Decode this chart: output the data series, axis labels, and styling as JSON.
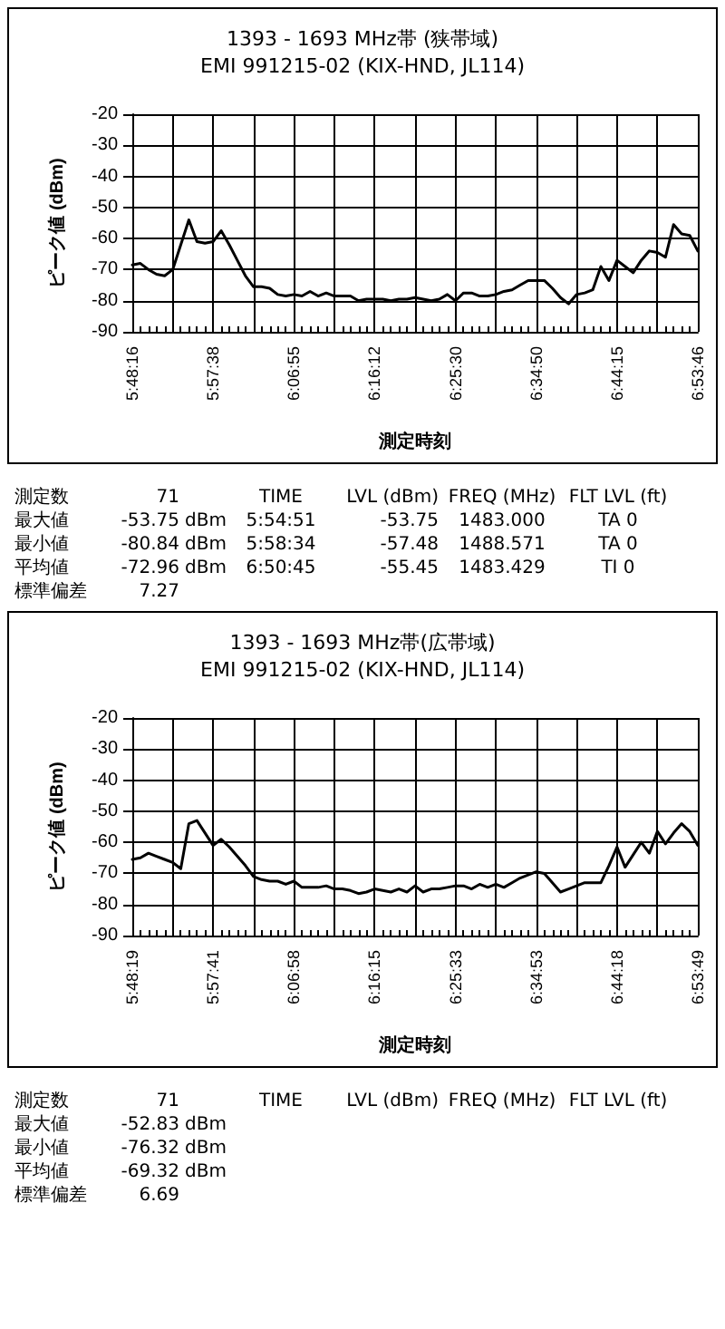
{
  "chart_data": [
    {
      "type": "line",
      "title": "1393 - 1693 MHz帯 (狭帯域)",
      "subtitle": "EMI 991215-02 (KIX-HND, JL114)",
      "xlabel": "測定時刻",
      "ylabel": "ピーク値 (dBm)",
      "categories": [
        "5:48:16",
        null,
        null,
        null,
        null,
        null,
        null,
        null,
        null,
        null,
        "5:57:38",
        null,
        null,
        null,
        null,
        null,
        null,
        null,
        null,
        null,
        "6:06:55",
        null,
        null,
        null,
        null,
        null,
        null,
        null,
        null,
        null,
        "6:16:12",
        null,
        null,
        null,
        null,
        null,
        null,
        null,
        null,
        null,
        "6:25:30",
        null,
        null,
        null,
        null,
        null,
        null,
        null,
        null,
        null,
        "6:34:50",
        null,
        null,
        null,
        null,
        null,
        null,
        null,
        null,
        null,
        "6:44:15",
        null,
        null,
        null,
        null,
        null,
        null,
        null,
        null,
        null,
        "6:53:46"
      ],
      "series": [
        {
          "color": "#000000",
          "values": [
            -68.5,
            -68,
            -70,
            -71.5,
            -72,
            -70,
            -62,
            -54,
            -61,
            -61.5,
            -61,
            -57.5,
            -62,
            -67,
            -72,
            -75.5,
            -75.5,
            -76,
            -78,
            -78.5,
            -78,
            -78.5,
            -77,
            -78.5,
            -77.5,
            -78.5,
            -78.5,
            -78.5,
            -80,
            -79.5,
            -79.5,
            -79.5,
            -80,
            -79.5,
            -79.5,
            -79,
            -79.5,
            -80,
            -79.5,
            -78,
            -80,
            -77.5,
            -77.5,
            -78.5,
            -78.5,
            -78,
            -77,
            -76.5,
            -75,
            -73.5,
            -73.5,
            -73.5,
            -76,
            -79,
            -81,
            -78,
            -77.5,
            -76.5,
            -69,
            -73.5,
            -67,
            -69,
            -71,
            -67,
            -64,
            -64.5,
            -66,
            -55.5,
            -58.5,
            -59,
            -64
          ]
        }
      ],
      "ylim": [
        -90,
        -20
      ],
      "yticks": [
        -90,
        -80,
        -70,
        -60,
        -50,
        -40,
        -30,
        -20
      ],
      "grid": true,
      "marker": "none",
      "line_style": "solid",
      "annotations": [
        "測定数\t71\t\tTIME\tLVL (dBm)\tFREQ (MHz)\tFLT LVL (ft)",
        "最大値\t-53.75\tdBm\t5:54:51\t-53.75\t1483.000\tTA 0",
        "最小値\t-80.84\tdBm\t5:58:34\t-57.48\t1488.571\tTA 0",
        "平均値\t-72.96\tdBm\t6:50:45\t-55.45\t1483.429\tTI 0",
        "標準偏差\t7.27"
      ]
    },
    {
      "type": "line",
      "title": "1393 - 1693 MHz帯(広帯域)",
      "subtitle": "EMI 991215-02 (KIX-HND, JL114)",
      "xlabel": "測定時刻",
      "ylabel": "ピーク値 (dBm)",
      "categories": [
        "5:48:19",
        null,
        null,
        null,
        null,
        null,
        null,
        null,
        null,
        null,
        "5:57:41",
        null,
        null,
        null,
        null,
        null,
        null,
        null,
        null,
        null,
        "6:06:58",
        null,
        null,
        null,
        null,
        null,
        null,
        null,
        null,
        null,
        "6:16:15",
        null,
        null,
        null,
        null,
        null,
        null,
        null,
        null,
        null,
        "6:25:33",
        null,
        null,
        null,
        null,
        null,
        null,
        null,
        null,
        null,
        "6:34:53",
        null,
        null,
        null,
        null,
        null,
        null,
        null,
        null,
        null,
        "6:44:18",
        null,
        null,
        null,
        null,
        null,
        null,
        null,
        null,
        null,
        "6:53:49"
      ],
      "series": [
        {
          "color": "#000000",
          "values": [
            -65.5,
            -65,
            -63.5,
            -64.5,
            -65.5,
            -66.5,
            -68.5,
            -54,
            -53,
            -57,
            -61,
            -59,
            -61.5,
            -64.5,
            -67.5,
            -71,
            -72,
            -72.5,
            -72.5,
            -73.5,
            -72.5,
            -74.5,
            -74.5,
            -74.5,
            -74,
            -75,
            -75,
            -75.5,
            -76.5,
            -76,
            -75,
            -75.5,
            -76,
            -75,
            -76,
            -74,
            -76,
            -75,
            -75,
            -74.5,
            -74,
            -74,
            -75,
            -73.5,
            -74.5,
            -73.5,
            -74.5,
            -73,
            -71.5,
            -70.5,
            -69.5,
            -70,
            -73,
            -76,
            -75,
            -74,
            -73,
            -73,
            -73,
            -67.5,
            -61.5,
            -68,
            -64,
            -60,
            -63.5,
            -56.5,
            -60.5,
            -57,
            -54,
            -56.5,
            -61
          ]
        }
      ],
      "ylim": [
        -90,
        -20
      ],
      "yticks": [
        -90,
        -80,
        -70,
        -60,
        -50,
        -40,
        -30,
        -20
      ],
      "grid": true,
      "marker": "none",
      "line_style": "solid",
      "annotations": [
        "測定数\t71\t\tTIME\tLVL (dBm)\tFREQ (MHz)\tFLT LVL (ft)",
        "最大値\t-52.83\tdBm",
        "最小値\t-76.32\tdBm",
        "平均値\t-69.32\tdBm",
        "標準偏差\t6.69"
      ]
    }
  ]
}
